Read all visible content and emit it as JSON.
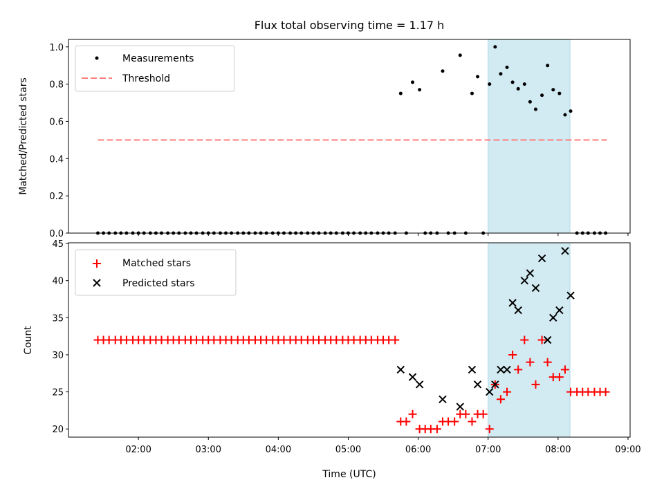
{
  "title": "Flux total observing time = 1.17 h",
  "colors": {
    "measurement": "#000000",
    "threshold": "#ff7f7f",
    "matched": "#ff0000",
    "predicted": "#000000",
    "highlight": "#add8e6"
  },
  "chart_data": [
    {
      "type": "scatter",
      "panel": "top",
      "ylabel": "Matched/Predicted stars",
      "xlabel": "",
      "xlim": [
        1.0,
        9.03
      ],
      "ylim": [
        0,
        1.04
      ],
      "yticks": [
        "0.0",
        "0.2",
        "0.4",
        "0.6",
        "0.8",
        "1.0"
      ],
      "ytick_values": [
        0,
        0.2,
        0.4,
        0.6,
        0.8,
        1.0
      ],
      "legend_position": "top-left",
      "legend": [
        "Measurements",
        "Threshold"
      ],
      "highlight_span": {
        "x": [
          7.0,
          8.17
        ]
      },
      "threshold": {
        "name": "Threshold",
        "y": 0.5,
        "x": [
          1.42,
          8.7
        ]
      },
      "series": [
        {
          "name": "Measurements",
          "x": [
            1.42,
            1.5,
            1.58,
            1.67,
            1.75,
            1.83,
            1.92,
            2.0,
            2.08,
            2.17,
            2.25,
            2.33,
            2.42,
            2.5,
            2.58,
            2.67,
            2.75,
            2.83,
            2.92,
            3.0,
            3.08,
            3.17,
            3.25,
            3.33,
            3.42,
            3.5,
            3.58,
            3.67,
            3.75,
            3.83,
            3.92,
            4.0,
            4.08,
            4.17,
            4.25,
            4.33,
            4.42,
            4.5,
            4.58,
            4.67,
            4.75,
            4.83,
            4.92,
            5.0,
            5.08,
            5.17,
            5.25,
            5.33,
            5.42,
            5.5,
            5.58,
            5.67,
            5.75,
            5.83,
            5.92,
            6.02,
            6.1,
            6.18,
            6.27,
            6.35,
            6.43,
            6.52,
            6.6,
            6.68,
            6.77,
            6.85,
            6.93,
            7.02,
            7.1,
            7.18,
            7.27,
            7.35,
            7.43,
            7.52,
            7.6,
            7.68,
            7.77,
            7.85,
            7.93,
            8.02,
            8.1,
            8.18,
            8.27,
            8.35,
            8.43,
            8.52,
            8.6,
            8.68
          ],
          "y": [
            0,
            0,
            0,
            0,
            0,
            0,
            0,
            0,
            0,
            0,
            0,
            0,
            0,
            0,
            0,
            0,
            0,
            0,
            0,
            0,
            0,
            0,
            0,
            0,
            0,
            0,
            0,
            0,
            0,
            0,
            0,
            0,
            0,
            0,
            0,
            0,
            0,
            0,
            0,
            0,
            0,
            0,
            0,
            0,
            0,
            0,
            0,
            0,
            0,
            0,
            0,
            0,
            0.75,
            0,
            0.81,
            0.77,
            0,
            0,
            0,
            0.87,
            0,
            0,
            0.955,
            0,
            0.75,
            0.84,
            0,
            0.8,
            1.0,
            0.855,
            0.89,
            0.81,
            0.775,
            0.8,
            0.705,
            0.665,
            0.74,
            0.9,
            0.77,
            0.75,
            0.635,
            0.655,
            0,
            0,
            0,
            0,
            0,
            0
          ]
        }
      ]
    },
    {
      "type": "scatter",
      "panel": "bottom",
      "ylabel": "Count",
      "xlabel": "Time (UTC)",
      "xlim": [
        1.0,
        9.03
      ],
      "ylim": [
        18.9,
        45.1
      ],
      "yticks": [
        "20",
        "25",
        "30",
        "35",
        "40",
        "45"
      ],
      "ytick_values": [
        20,
        25,
        30,
        35,
        40,
        45
      ],
      "xticks": [
        "02:00",
        "03:00",
        "04:00",
        "05:00",
        "06:00",
        "07:00",
        "08:00",
        "09:00"
      ],
      "xtick_values": [
        2,
        3,
        4,
        5,
        6,
        7,
        8,
        9
      ],
      "legend_position": "top-left",
      "legend": [
        "Matched stars",
        "Predicted stars"
      ],
      "highlight_span": {
        "x": [
          7.0,
          8.17
        ]
      },
      "series": [
        {
          "name": "Matched stars",
          "x": [
            1.42,
            1.5,
            1.58,
            1.67,
            1.75,
            1.83,
            1.92,
            2.0,
            2.08,
            2.17,
            2.25,
            2.33,
            2.42,
            2.5,
            2.58,
            2.67,
            2.75,
            2.83,
            2.92,
            3.0,
            3.08,
            3.17,
            3.25,
            3.33,
            3.42,
            3.5,
            3.58,
            3.67,
            3.75,
            3.83,
            3.92,
            4.0,
            4.08,
            4.17,
            4.25,
            4.33,
            4.42,
            4.5,
            4.58,
            4.67,
            4.75,
            4.83,
            4.92,
            5.0,
            5.08,
            5.17,
            5.25,
            5.33,
            5.42,
            5.5,
            5.58,
            5.67,
            5.75,
            5.83,
            5.92,
            6.02,
            6.1,
            6.18,
            6.27,
            6.35,
            6.43,
            6.52,
            6.6,
            6.68,
            6.77,
            6.85,
            6.93,
            7.02,
            7.1,
            7.18,
            7.27,
            7.35,
            7.43,
            7.52,
            7.6,
            7.68,
            7.77,
            7.85,
            7.93,
            8.02,
            8.1,
            8.18,
            8.27,
            8.35,
            8.43,
            8.52,
            8.6,
            8.68
          ],
          "y": [
            32,
            32,
            32,
            32,
            32,
            32,
            32,
            32,
            32,
            32,
            32,
            32,
            32,
            32,
            32,
            32,
            32,
            32,
            32,
            32,
            32,
            32,
            32,
            32,
            32,
            32,
            32,
            32,
            32,
            32,
            32,
            32,
            32,
            32,
            32,
            32,
            32,
            32,
            32,
            32,
            32,
            32,
            32,
            32,
            32,
            32,
            32,
            32,
            32,
            32,
            32,
            32,
            21,
            21,
            22,
            20,
            20,
            20,
            20,
            21,
            21,
            21,
            22,
            22,
            21,
            22,
            22,
            20,
            26,
            24,
            25,
            30,
            28,
            32,
            29,
            26,
            32,
            29,
            27,
            27,
            28,
            25,
            25,
            25,
            25,
            25,
            25,
            25
          ]
        },
        {
          "name": "Predicted stars",
          "x": [
            5.75,
            5.92,
            6.02,
            6.35,
            6.6,
            6.77,
            6.85,
            7.02,
            7.1,
            7.18,
            7.27,
            7.35,
            7.43,
            7.52,
            7.6,
            7.68,
            7.77,
            7.85,
            7.93,
            8.02,
            8.1,
            8.18
          ],
          "y": [
            28,
            27,
            26,
            24,
            23,
            28,
            26,
            25,
            26,
            28,
            28,
            37,
            36,
            40,
            41,
            39,
            43,
            32,
            35,
            36,
            44,
            38
          ]
        }
      ]
    }
  ]
}
